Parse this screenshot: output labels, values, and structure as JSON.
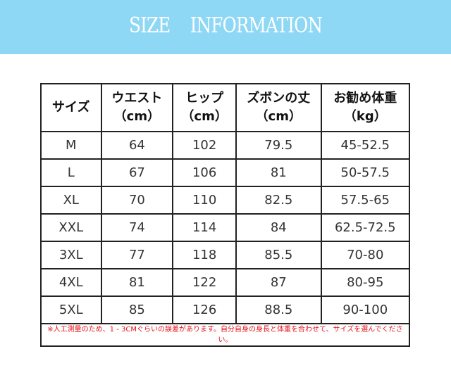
{
  "banner": {
    "title": "SIZE INFORMATION",
    "color": "#8ed8f5"
  },
  "table": {
    "headers": [
      {
        "line1": "サイズ",
        "line2": ""
      },
      {
        "line1": "ウエスト",
        "line2": "（cm）"
      },
      {
        "line1": "ヒップ",
        "line2": "（cm）"
      },
      {
        "line1": "ズボンの丈",
        "line2": "（cm）"
      },
      {
        "line1": "お勧め体重",
        "line2": "（kg）"
      }
    ],
    "rows": [
      [
        "M",
        "64",
        "102",
        "79.5",
        "45-52.5"
      ],
      [
        "L",
        "67",
        "106",
        "81",
        "50-57.5"
      ],
      [
        "XL",
        "70",
        "110",
        "82.5",
        "57.5-65"
      ],
      [
        "XXL",
        "74",
        "114",
        "84",
        "62.5-72.5"
      ],
      [
        "3XL",
        "77",
        "118",
        "85.5",
        "70-80"
      ],
      [
        "4XL",
        "81",
        "122",
        "87",
        "80-95"
      ],
      [
        "5XL",
        "85",
        "126",
        "88.5",
        "90-100"
      ]
    ],
    "note": "※人工測量のため、1 - 3CMぐらいの誤差があります。自分自身の身長と体重を合わせて、サイズを選んでください。",
    "note_color": "#e8101a"
  }
}
